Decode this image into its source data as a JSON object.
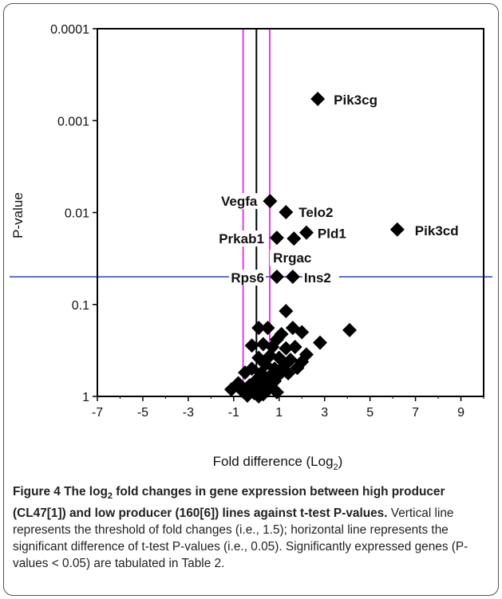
{
  "chart_data": {
    "type": "scatter",
    "xlabel": "Fold difference (Log",
    "xlabel_sub": "2",
    "xlabel_close": ")",
    "ylabel": "P-value",
    "xlim": [
      -7,
      10
    ],
    "x_ticks": [
      -7,
      -5,
      -3,
      -1,
      1,
      3,
      5,
      7,
      9
    ],
    "y_scale": "log-reversed",
    "ylim": [
      1,
      0.0001
    ],
    "y_ticks": [
      {
        "value": 0.0001,
        "label": "0.0001"
      },
      {
        "value": 0.001,
        "label": "0.001"
      },
      {
        "value": 0.01,
        "label": "0.01"
      },
      {
        "value": 0.1,
        "label": "0.1"
      },
      {
        "value": 1,
        "label": "1"
      }
    ],
    "reference_lines": {
      "vertical_black": 0,
      "vertical_magenta": [
        -0.585,
        0.585
      ],
      "horizontal_blue": 0.05,
      "colors": {
        "black": "#000000",
        "magenta": "#e040e0",
        "blue": "#3a4fc4"
      }
    },
    "labeled_points": [
      {
        "gene": "Pik3cg",
        "x": 2.7,
        "y": 0.00058
      },
      {
        "gene": "Vegfa",
        "x": 0.6,
        "y": 0.0075
      },
      {
        "gene": "Telo2",
        "x": 1.3,
        "y": 0.0099
      },
      {
        "gene": "Pik3cd",
        "x": 6.2,
        "y": 0.0153
      },
      {
        "gene": "Pld1",
        "x": 2.2,
        "y": 0.0165
      },
      {
        "gene": "Prkab1",
        "x": 0.9,
        "y": 0.0188
      },
      {
        "gene": "Rrgac",
        "x": 1.65,
        "y": 0.0192
      },
      {
        "gene": "Rps6",
        "x": 0.9,
        "y": 0.05
      },
      {
        "gene": "Ins2",
        "x": 1.6,
        "y": 0.05
      }
    ],
    "points": [
      {
        "x": 2.7,
        "y": 0.00058
      },
      {
        "x": 0.6,
        "y": 0.0075
      },
      {
        "x": 1.3,
        "y": 0.0099
      },
      {
        "x": 6.2,
        "y": 0.0153
      },
      {
        "x": 2.2,
        "y": 0.0165
      },
      {
        "x": 0.9,
        "y": 0.0188
      },
      {
        "x": 1.65,
        "y": 0.0192
      },
      {
        "x": 0.9,
        "y": 0.05
      },
      {
        "x": 1.6,
        "y": 0.05
      },
      {
        "x": 1.3,
        "y": 0.118
      },
      {
        "x": 0.5,
        "y": 0.18
      },
      {
        "x": 1.6,
        "y": 0.18
      },
      {
        "x": 4.1,
        "y": 0.19
      },
      {
        "x": 1.1,
        "y": 0.21
      },
      {
        "x": 2.0,
        "y": 0.2
      },
      {
        "x": 0.9,
        "y": 0.24
      },
      {
        "x": 2.8,
        "y": 0.26
      },
      {
        "x": 1.7,
        "y": 0.29
      },
      {
        "x": 0.3,
        "y": 0.27
      },
      {
        "x": 0.7,
        "y": 0.29
      },
      {
        "x": 1.3,
        "y": 0.3
      },
      {
        "x": 2.2,
        "y": 0.35
      },
      {
        "x": 0.1,
        "y": 0.38
      },
      {
        "x": 0.6,
        "y": 0.36
      },
      {
        "x": 1.0,
        "y": 0.38
      },
      {
        "x": 1.5,
        "y": 0.4
      },
      {
        "x": 2.0,
        "y": 0.42
      },
      {
        "x": 0.4,
        "y": 0.45
      },
      {
        "x": 0.8,
        "y": 0.5
      },
      {
        "x": 1.2,
        "y": 0.47
      },
      {
        "x": 1.8,
        "y": 0.49
      },
      {
        "x": -0.2,
        "y": 0.5
      },
      {
        "x": 0.2,
        "y": 0.56
      },
      {
        "x": 0.6,
        "y": 0.6
      },
      {
        "x": 1.0,
        "y": 0.58
      },
      {
        "x": 1.4,
        "y": 0.56
      },
      {
        "x": -0.5,
        "y": 0.55
      },
      {
        "x": 0.0,
        "y": 0.66
      },
      {
        "x": 0.4,
        "y": 0.7
      },
      {
        "x": 0.8,
        "y": 0.68
      },
      {
        "x": -0.8,
        "y": 0.72
      },
      {
        "x": -0.3,
        "y": 0.76
      },
      {
        "x": 0.2,
        "y": 0.82
      },
      {
        "x": 0.6,
        "y": 0.8
      },
      {
        "x": -1.1,
        "y": 0.84
      },
      {
        "x": -0.6,
        "y": 0.88
      },
      {
        "x": -0.1,
        "y": 0.92
      },
      {
        "x": 0.3,
        "y": 0.95
      },
      {
        "x": -0.4,
        "y": 0.98
      },
      {
        "x": 0.1,
        "y": 1.0
      },
      {
        "x": 0.9,
        "y": 0.9
      },
      {
        "x": 0.1,
        "y": 0.18
      },
      {
        "x": -0.2,
        "y": 0.28
      }
    ]
  },
  "caption": {
    "label": "Figure 4",
    "title_pre": "The log",
    "title_sub": "2",
    "title_post": " fold changes in gene expression between high producer (CL47[1]) and low producer (160[6]) lines against t-test P-values.",
    "body": " Vertical line represents the threshold of fold changes (i.e., 1.5); horizontal line represents the significant difference of t-test P-values (i.e., 0.05). Significantly expressed genes (P-values < 0.05) are tabulated in Table 2."
  }
}
